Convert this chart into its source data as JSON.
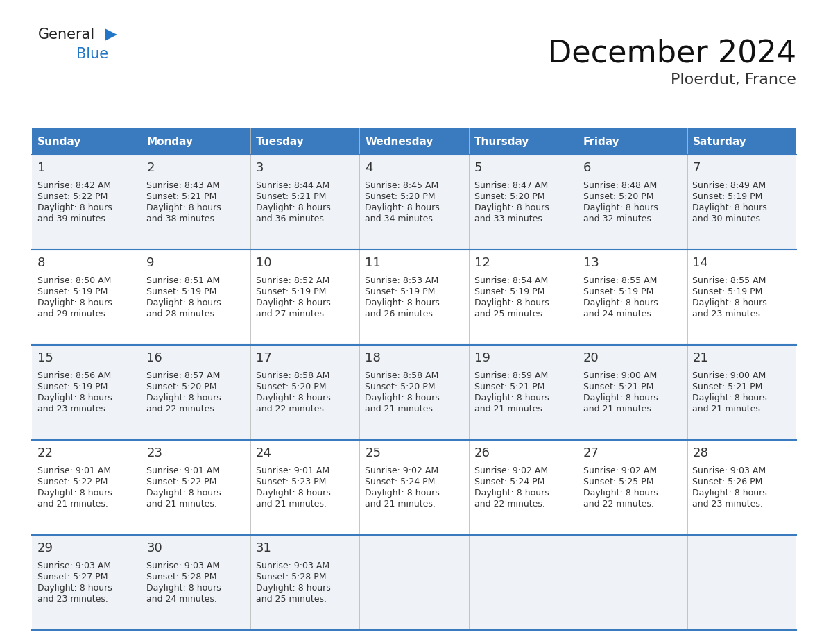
{
  "title": "December 2024",
  "subtitle": "Ploerdut, France",
  "header_color": "#3a7abf",
  "header_text_color": "#ffffff",
  "day_names": [
    "Sunday",
    "Monday",
    "Tuesday",
    "Wednesday",
    "Thursday",
    "Friday",
    "Saturday"
  ],
  "row_bg_colors": [
    "#eff3f7",
    "#ffffff"
  ],
  "grid_line_color": "#3a7abf",
  "text_color": "#333333",
  "calendar_data": [
    [
      {
        "day": 1,
        "sunrise": "8:42 AM",
        "sunset": "5:22 PM",
        "daylight": "8 hours and 39 minutes."
      },
      {
        "day": 2,
        "sunrise": "8:43 AM",
        "sunset": "5:21 PM",
        "daylight": "8 hours and 38 minutes."
      },
      {
        "day": 3,
        "sunrise": "8:44 AM",
        "sunset": "5:21 PM",
        "daylight": "8 hours and 36 minutes."
      },
      {
        "day": 4,
        "sunrise": "8:45 AM",
        "sunset": "5:20 PM",
        "daylight": "8 hours and 34 minutes."
      },
      {
        "day": 5,
        "sunrise": "8:47 AM",
        "sunset": "5:20 PM",
        "daylight": "8 hours and 33 minutes."
      },
      {
        "day": 6,
        "sunrise": "8:48 AM",
        "sunset": "5:20 PM",
        "daylight": "8 hours and 32 minutes."
      },
      {
        "day": 7,
        "sunrise": "8:49 AM",
        "sunset": "5:19 PM",
        "daylight": "8 hours and 30 minutes."
      }
    ],
    [
      {
        "day": 8,
        "sunrise": "8:50 AM",
        "sunset": "5:19 PM",
        "daylight": "8 hours and 29 minutes."
      },
      {
        "day": 9,
        "sunrise": "8:51 AM",
        "sunset": "5:19 PM",
        "daylight": "8 hours and 28 minutes."
      },
      {
        "day": 10,
        "sunrise": "8:52 AM",
        "sunset": "5:19 PM",
        "daylight": "8 hours and 27 minutes."
      },
      {
        "day": 11,
        "sunrise": "8:53 AM",
        "sunset": "5:19 PM",
        "daylight": "8 hours and 26 minutes."
      },
      {
        "day": 12,
        "sunrise": "8:54 AM",
        "sunset": "5:19 PM",
        "daylight": "8 hours and 25 minutes."
      },
      {
        "day": 13,
        "sunrise": "8:55 AM",
        "sunset": "5:19 PM",
        "daylight": "8 hours and 24 minutes."
      },
      {
        "day": 14,
        "sunrise": "8:55 AM",
        "sunset": "5:19 PM",
        "daylight": "8 hours and 23 minutes."
      }
    ],
    [
      {
        "day": 15,
        "sunrise": "8:56 AM",
        "sunset": "5:19 PM",
        "daylight": "8 hours and 23 minutes."
      },
      {
        "day": 16,
        "sunrise": "8:57 AM",
        "sunset": "5:20 PM",
        "daylight": "8 hours and 22 minutes."
      },
      {
        "day": 17,
        "sunrise": "8:58 AM",
        "sunset": "5:20 PM",
        "daylight": "8 hours and 22 minutes."
      },
      {
        "day": 18,
        "sunrise": "8:58 AM",
        "sunset": "5:20 PM",
        "daylight": "8 hours and 21 minutes."
      },
      {
        "day": 19,
        "sunrise": "8:59 AM",
        "sunset": "5:21 PM",
        "daylight": "8 hours and 21 minutes."
      },
      {
        "day": 20,
        "sunrise": "9:00 AM",
        "sunset": "5:21 PM",
        "daylight": "8 hours and 21 minutes."
      },
      {
        "day": 21,
        "sunrise": "9:00 AM",
        "sunset": "5:21 PM",
        "daylight": "8 hours and 21 minutes."
      }
    ],
    [
      {
        "day": 22,
        "sunrise": "9:01 AM",
        "sunset": "5:22 PM",
        "daylight": "8 hours and 21 minutes."
      },
      {
        "day": 23,
        "sunrise": "9:01 AM",
        "sunset": "5:22 PM",
        "daylight": "8 hours and 21 minutes."
      },
      {
        "day": 24,
        "sunrise": "9:01 AM",
        "sunset": "5:23 PM",
        "daylight": "8 hours and 21 minutes."
      },
      {
        "day": 25,
        "sunrise": "9:02 AM",
        "sunset": "5:24 PM",
        "daylight": "8 hours and 21 minutes."
      },
      {
        "day": 26,
        "sunrise": "9:02 AM",
        "sunset": "5:24 PM",
        "daylight": "8 hours and 22 minutes."
      },
      {
        "day": 27,
        "sunrise": "9:02 AM",
        "sunset": "5:25 PM",
        "daylight": "8 hours and 22 minutes."
      },
      {
        "day": 28,
        "sunrise": "9:03 AM",
        "sunset": "5:26 PM",
        "daylight": "8 hours and 23 minutes."
      }
    ],
    [
      {
        "day": 29,
        "sunrise": "9:03 AM",
        "sunset": "5:27 PM",
        "daylight": "8 hours and 23 minutes."
      },
      {
        "day": 30,
        "sunrise": "9:03 AM",
        "sunset": "5:28 PM",
        "daylight": "8 hours and 24 minutes."
      },
      {
        "day": 31,
        "sunrise": "9:03 AM",
        "sunset": "5:28 PM",
        "daylight": "8 hours and 25 minutes."
      },
      null,
      null,
      null,
      null
    ]
  ],
  "logo_general_color": "#222222",
  "logo_blue_color": "#2176c7",
  "logo_triangle_color": "#2176c7",
  "header_fontsize": 11,
  "day_number_fontsize": 13,
  "cell_text_fontsize": 9,
  "title_fontsize": 32,
  "subtitle_fontsize": 16
}
